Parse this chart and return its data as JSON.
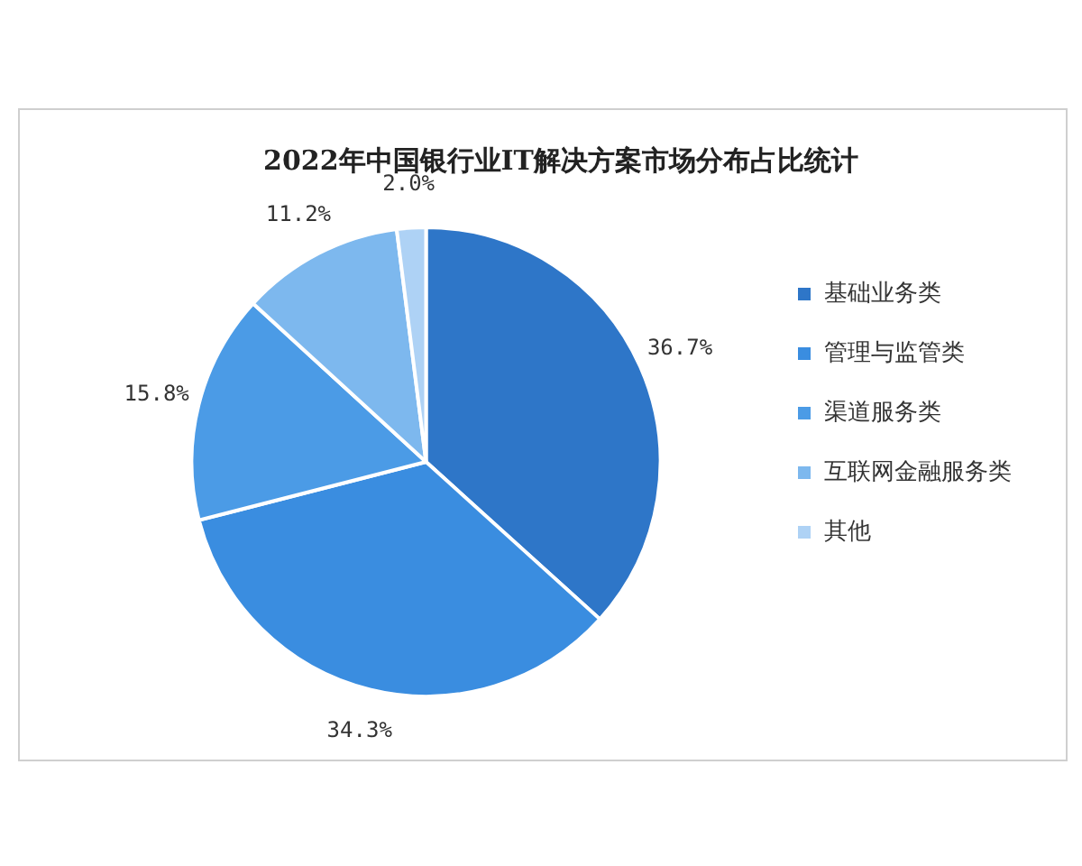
{
  "chart_data": {
    "type": "pie",
    "title": "2022年中国银行业IT解决方案市场分布占比统计",
    "categories": [
      "基础业务类",
      "管理与监管类",
      "渠道服务类",
      "互联网金融服务类",
      "其他"
    ],
    "values": [
      36.7,
      34.3,
      15.8,
      11.2,
      2.0
    ],
    "value_labels": [
      "36.7%",
      "34.3%",
      "15.8%",
      "11.2%",
      "2.0%"
    ],
    "colors": [
      "#2e76c8",
      "#3a8de0",
      "#4b9be6",
      "#7db8ee",
      "#aed2f5"
    ],
    "legend": "right"
  }
}
